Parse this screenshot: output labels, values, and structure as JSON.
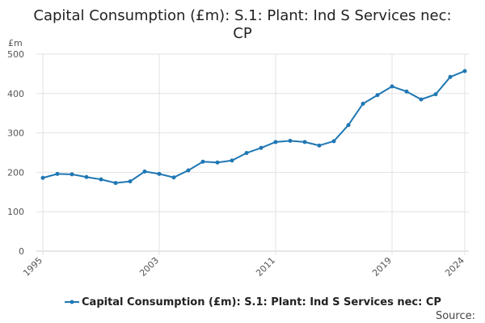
{
  "chart_data": {
    "type": "line",
    "title_lines": [
      "Capital Consumption (£m): S.1: Plant: Ind S Services nec:",
      "CP"
    ],
    "unit_label": "£m",
    "xlabel": "",
    "ylabel": "",
    "ylim": [
      0,
      500
    ],
    "xlim": [
      1995,
      2024
    ],
    "yticks": [
      0,
      100,
      200,
      300,
      400,
      500
    ],
    "xticks": [
      1995,
      2003,
      2011,
      2019,
      2024
    ],
    "grid": true,
    "legend_position": "bottom",
    "series": [
      {
        "name": "Capital Consumption (£m): S.1: Plant: Ind S Services nec: CP",
        "color": "#1f77b4",
        "x": [
          1995,
          1996,
          1997,
          1998,
          1999,
          2000,
          2001,
          2002,
          2003,
          2004,
          2005,
          2006,
          2007,
          2008,
          2009,
          2010,
          2011,
          2012,
          2013,
          2014,
          2015,
          2016,
          2017,
          2018,
          2019,
          2020,
          2021,
          2022,
          2023,
          2024
        ],
        "values": [
          186,
          196,
          195,
          188,
          182,
          173,
          177,
          202,
          196,
          187,
          205,
          227,
          225,
          230,
          249,
          262,
          277,
          280,
          277,
          268,
          279,
          320,
          374,
          396,
          418,
          405,
          385,
          398,
          442,
          457
        ]
      }
    ]
  },
  "footer": {
    "source_label": "Source:"
  }
}
